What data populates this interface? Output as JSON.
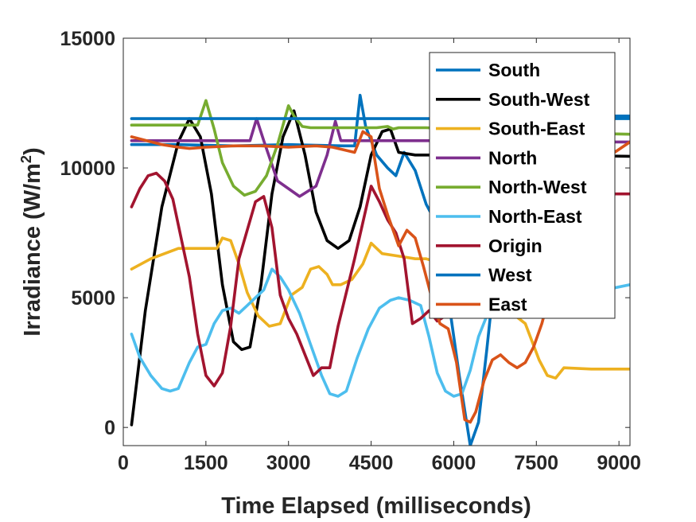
{
  "chart_data": {
    "type": "line",
    "title": "",
    "xlabel": "Time Elapsed (milliseconds)",
    "ylabel_main": "Irradiance (W/m",
    "ylabel_sup": "2",
    "ylabel_close": ")",
    "xlim": [
      0,
      9200
    ],
    "ylim": [
      -700,
      15000
    ],
    "xticks": [
      0,
      1500,
      3000,
      4500,
      6000,
      7500,
      9000
    ],
    "yticks": [
      0,
      5000,
      10000,
      15000
    ],
    "grid": false,
    "legend_position": "top-right",
    "series": [
      {
        "name": "South",
        "color": "#0072BD",
        "x": [
          150,
          1000,
          2000,
          3000,
          4000,
          4200,
          4300,
          4400,
          4600,
          4800,
          4950,
          5100,
          5300,
          5500,
          5700,
          5900,
          6100,
          6300,
          6450,
          6600,
          6800,
          7000,
          7500,
          8000,
          8500,
          9200
        ],
        "y": [
          10900,
          10900,
          10850,
          10900,
          10850,
          10850,
          12800,
          11600,
          10500,
          10000,
          9700,
          10600,
          9900,
          8600,
          7800,
          5000,
          2000,
          -700,
          200,
          3000,
          7000,
          10000,
          11500,
          12000,
          12000,
          12000
        ]
      },
      {
        "name": "South-West",
        "color": "#000000",
        "x": [
          150,
          400,
          700,
          1000,
          1200,
          1400,
          1600,
          1800,
          2000,
          2150,
          2300,
          2500,
          2700,
          2900,
          3100,
          3300,
          3500,
          3700,
          3900,
          4100,
          4300,
          4500,
          4700,
          4850,
          5000,
          5300,
          5800,
          6500,
          7500,
          9200
        ],
        "y": [
          100,
          4500,
          8500,
          11000,
          11900,
          11200,
          9000,
          5500,
          3300,
          3000,
          3100,
          5500,
          9000,
          11200,
          12200,
          10500,
          8300,
          7200,
          6900,
          7200,
          8500,
          10500,
          11400,
          11500,
          10600,
          10500,
          10500,
          10500,
          10500,
          10450
        ]
      },
      {
        "name": "South-East",
        "color": "#EDB120",
        "x": [
          150,
          500,
          1000,
          1500,
          1700,
          1800,
          1950,
          2100,
          2250,
          2450,
          2650,
          2850,
          3050,
          3250,
          3400,
          3550,
          3700,
          3800,
          3950,
          4150,
          4350,
          4500,
          4700,
          5000,
          5300,
          5500,
          5800,
          6100,
          6400,
          6700,
          7000,
          7300,
          7550,
          7700,
          7850,
          8000,
          8500,
          9200
        ],
        "y": [
          6100,
          6500,
          6900,
          6900,
          6900,
          7300,
          7200,
          6300,
          5200,
          4300,
          3900,
          4000,
          5100,
          5400,
          6100,
          6200,
          5900,
          5500,
          5500,
          5700,
          6300,
          7100,
          6700,
          6600,
          6500,
          6500,
          6300,
          6000,
          5500,
          5000,
          4500,
          4000,
          2600,
          2000,
          1900,
          2300,
          2250,
          2250
        ]
      },
      {
        "name": "North",
        "color": "#7E2F8E",
        "x": [
          150,
          1000,
          2000,
          2300,
          2420,
          2550,
          2800,
          3200,
          3500,
          3700,
          3850,
          3950,
          4100,
          4500,
          5000,
          5500,
          6000,
          7000,
          8000,
          9200
        ],
        "y": [
          11050,
          11050,
          11050,
          11050,
          11900,
          11050,
          9500,
          8900,
          9300,
          10500,
          11800,
          11050,
          11050,
          11050,
          11050,
          11050,
          11050,
          11000,
          11000,
          11000
        ]
      },
      {
        "name": "North-West",
        "color": "#77AC30",
        "x": [
          150,
          1000,
          1350,
          1500,
          1650,
          1800,
          2000,
          2200,
          2400,
          2600,
          2800,
          3000,
          3100,
          3250,
          3400,
          3600,
          4000,
          4600,
          4800,
          4900,
          5000,
          5500,
          6000,
          7000,
          8000,
          9200
        ],
        "y": [
          11650,
          11650,
          11650,
          12600,
          11500,
          10200,
          9300,
          8950,
          9100,
          9700,
          10900,
          12400,
          12000,
          11600,
          11550,
          11550,
          11550,
          11550,
          11600,
          11500,
          11550,
          11550,
          11500,
          11450,
          11350,
          11300
        ]
      },
      {
        "name": "North-East",
        "color": "#4DBEEE",
        "x": [
          150,
          300,
          500,
          700,
          850,
          1000,
          1200,
          1350,
          1500,
          1650,
          1800,
          1950,
          2100,
          2250,
          2400,
          2550,
          2700,
          2850,
          3000,
          3200,
          3400,
          3600,
          3750,
          3900,
          4050,
          4250,
          4450,
          4650,
          4850,
          5000,
          5200,
          5400,
          5550,
          5700,
          5850,
          6000,
          6150,
          6300,
          6450,
          6600,
          6800,
          7000,
          7300,
          7600,
          8000,
          8500,
          9200
        ],
        "y": [
          3600,
          2700,
          2000,
          1500,
          1400,
          1500,
          2500,
          3100,
          3200,
          4000,
          4500,
          4600,
          4400,
          4700,
          5000,
          5300,
          6100,
          5800,
          5300,
          4400,
          3200,
          2000,
          1300,
          1200,
          1400,
          2700,
          3800,
          4600,
          4900,
          5000,
          4900,
          4700,
          3500,
          2100,
          1400,
          1200,
          1300,
          2200,
          3500,
          4300,
          4800,
          5000,
          5100,
          5100,
          5100,
          5200,
          5500
        ]
      },
      {
        "name": "Origin",
        "color": "#A2142F",
        "x": [
          150,
          300,
          450,
          600,
          750,
          900,
          1050,
          1200,
          1350,
          1500,
          1650,
          1800,
          1950,
          2100,
          2250,
          2400,
          2550,
          2700,
          2850,
          3000,
          3150,
          3300,
          3450,
          3600,
          3750,
          3900,
          4050,
          4200,
          4350,
          4500,
          4650,
          4800,
          4950,
          5100,
          5250,
          5400,
          5550,
          5700,
          5850,
          6000,
          6300,
          6600,
          7000,
          7500,
          8000,
          8500,
          9200
        ],
        "y": [
          8500,
          9200,
          9700,
          9800,
          9500,
          8800,
          7300,
          5800,
          3600,
          2000,
          1600,
          2100,
          3900,
          6500,
          7600,
          8700,
          8900,
          7700,
          5100,
          4200,
          3600,
          2800,
          2000,
          2300,
          2300,
          3900,
          5200,
          6500,
          7900,
          9300,
          8700,
          8000,
          7500,
          6500,
          4000,
          4200,
          4500,
          4100,
          4300,
          4500,
          5500,
          6500,
          7500,
          8500,
          9000,
          9000,
          9000
        ]
      },
      {
        "name": "West",
        "color": "#0072BD",
        "x": [
          150,
          1000,
          2000,
          3000,
          3500,
          4000,
          4500,
          5000,
          5500,
          6000,
          7000,
          8000,
          9200
        ],
        "y": [
          11900,
          11900,
          11900,
          11900,
          11900,
          11900,
          11900,
          11900,
          11900,
          11900,
          11900,
          11900,
          11900
        ]
      },
      {
        "name": "East",
        "color": "#D95319",
        "x": [
          150,
          700,
          1000,
          1200,
          1500,
          2000,
          2500,
          3000,
          3500,
          3800,
          4000,
          4200,
          4350,
          4500,
          4650,
          4800,
          5000,
          5150,
          5300,
          5450,
          5600,
          5750,
          5900,
          6050,
          6200,
          6300,
          6400,
          6550,
          6700,
          6850,
          7000,
          7150,
          7300,
          7450,
          7600,
          7800,
          8100,
          8500,
          9200
        ],
        "y": [
          11200,
          10900,
          10800,
          10750,
          10800,
          10850,
          10850,
          10800,
          10850,
          10800,
          10700,
          10600,
          11400,
          11200,
          9200,
          8200,
          7000,
          7600,
          7300,
          6200,
          5000,
          4000,
          3800,
          2500,
          300,
          200,
          600,
          1800,
          2600,
          2800,
          2500,
          2300,
          2500,
          3100,
          4000,
          5600,
          8000,
          10000,
          11000
        ]
      }
    ]
  }
}
